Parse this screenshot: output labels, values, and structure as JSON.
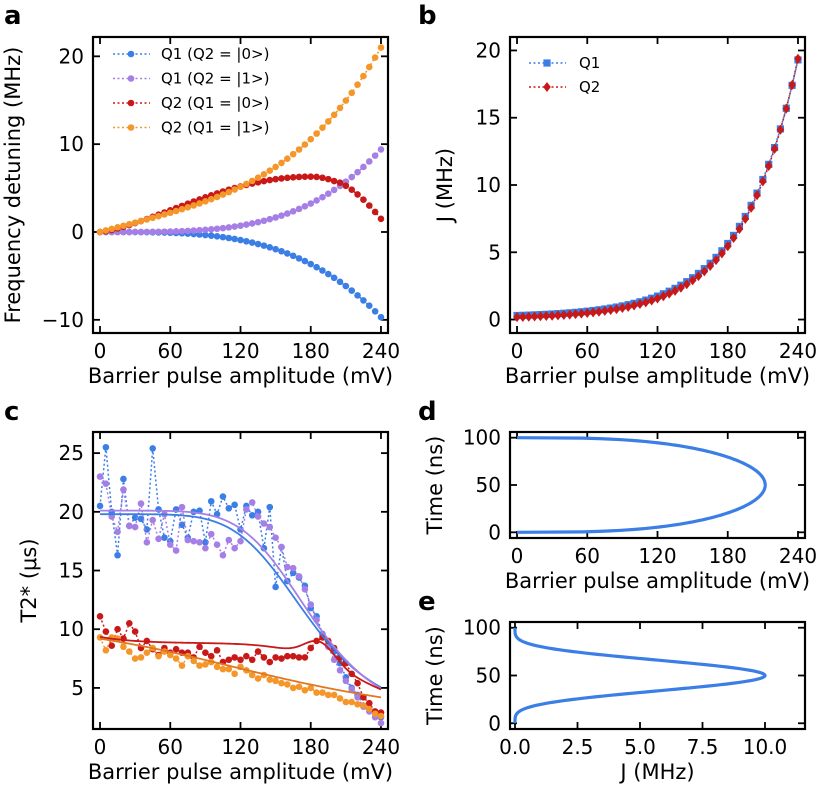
{
  "figure": {
    "panels": [
      "a",
      "b",
      "c",
      "d",
      "e"
    ]
  },
  "chart_data": [
    {
      "id": "a",
      "type": "line",
      "title": "",
      "xlabel": "Barrier pulse amplitude (mV)",
      "ylabel": "Frequency detuning (MHz)",
      "xlim": [
        -6,
        246
      ],
      "ylim": [
        -11.5,
        22.2
      ],
      "xticks": [
        0,
        60,
        120,
        180,
        240
      ],
      "yticks": [
        -10,
        0,
        10,
        20
      ],
      "legend_position": "top-left",
      "x_start": 0,
      "x_step": 5,
      "n": 49,
      "series": [
        {
          "name": "Q1 (Q2 = |0>)",
          "color": "#3a7ee6",
          "fn": "q1_0"
        },
        {
          "name": "Q1 (Q2 = |1>)",
          "color": "#a57fe6",
          "fn": "q1_1"
        },
        {
          "name": "Q2 (Q1 = |0>)",
          "color": "#c81818",
          "fn": "q2_0"
        },
        {
          "name": "Q2 (Q1 = |1>)",
          "color": "#f5962a",
          "fn": "q2_1"
        }
      ]
    },
    {
      "id": "b",
      "type": "line",
      "title": "",
      "xlabel": "Barrier pulse amplitude (mV)",
      "ylabel": "J (MHz)",
      "xlim": [
        -6,
        246
      ],
      "ylim": [
        -1,
        21
      ],
      "xticks": [
        0,
        60,
        120,
        180,
        240
      ],
      "yticks": [
        0,
        5,
        10,
        15,
        20
      ],
      "legend_position": "top-left",
      "x_start": 0,
      "x_step": 5,
      "n": 49,
      "series": [
        {
          "name": "Q1",
          "color": "#3a7ee6",
          "marker": "square",
          "fn": "j_q1"
        },
        {
          "name": "Q2",
          "color": "#c81818",
          "marker": "diamond",
          "fn": "j_q2"
        }
      ]
    },
    {
      "id": "c",
      "type": "scatter",
      "title": "",
      "xlabel": "Barrier pulse amplitude (mV)",
      "ylabel": "T2* (μs)",
      "xlim": [
        -6,
        246
      ],
      "ylim": [
        1.5,
        26.8
      ],
      "xticks": [
        0,
        60,
        120,
        180,
        240
      ],
      "yticks": [
        5,
        10,
        15,
        20,
        25
      ],
      "legend_position": "none",
      "x_start": 0,
      "x_step": 5,
      "n": 49,
      "series": [
        {
          "name": "Q1 (Q2 = |0>)",
          "color": "#3a7ee6",
          "values": [
            20.5,
            25.5,
            20.0,
            16.3,
            22.8,
            18.8,
            19.5,
            19.4,
            18.5,
            25.4,
            20.2,
            17.8,
            17.5,
            20.2,
            18.9,
            17.8,
            20.0,
            20.1,
            17.4,
            20.9,
            19.8,
            21.3,
            20.3,
            20.6,
            18.5,
            20.5,
            19.7,
            20.0,
            16.9,
            20.4,
            13.6,
            17.0,
            14.1,
            14.8,
            14.4,
            13.7,
            11.8,
            11.1,
            9.6,
            8.7,
            8.1,
            7.1,
            5.9,
            5.0,
            4.4,
            3.5,
            3.2,
            2.8,
            2.5
          ],
          "fit": "fit_q1_0",
          "fit_color": "#3a7ee6"
        },
        {
          "name": "Q1 (Q2 = |1>)",
          "color": "#a57fe6",
          "values": [
            23.0,
            22.4,
            19.6,
            18.3,
            21.9,
            18.8,
            18.7,
            20.7,
            17.4,
            19.3,
            17.7,
            19.8,
            17.2,
            16.7,
            20.4,
            17.6,
            17.5,
            17.4,
            16.9,
            18.1,
            17.2,
            16.3,
            17.6,
            16.9,
            17.5,
            20.2,
            20.8,
            19.6,
            19.0,
            18.7,
            17.8,
            17.0,
            15.3,
            15.2,
            14.5,
            13.4,
            12.1,
            10.8,
            9.5,
            8.5,
            7.4,
            6.5,
            5.6,
            4.9,
            4.2,
            3.4,
            3.0,
            2.5,
            2.0
          ],
          "fit": "fit_q1_1",
          "fit_color": "#a57fe6"
        },
        {
          "name": "Q2 (Q1 = |0>)",
          "color": "#c81818",
          "values": [
            11.1,
            9.8,
            8.6,
            10.0,
            9.2,
            10.5,
            9.8,
            8.4,
            9.0,
            8.3,
            7.8,
            8.4,
            8.0,
            8.3,
            8.0,
            8.0,
            7.6,
            8.5,
            8.0,
            7.7,
            8.2,
            7.2,
            7.4,
            7.6,
            7.4,
            7.7,
            7.4,
            8.1,
            7.6,
            7.2,
            7.6,
            7.5,
            7.7,
            7.7,
            7.6,
            7.6,
            8.4,
            9.0,
            9.3,
            9.0,
            8.4,
            7.6,
            7.1,
            6.2,
            5.4,
            4.2,
            3.7,
            3.0,
            2.9
          ],
          "fit": "fit_q2_0",
          "fit_color": "#c81818"
        },
        {
          "name": "Q2 (Q1 = |1>)",
          "color": "#f5962a",
          "values": [
            9.3,
            8.2,
            9.3,
            9.2,
            8.5,
            8.1,
            7.5,
            7.6,
            8.0,
            8.4,
            7.7,
            8.1,
            7.8,
            7.5,
            6.9,
            7.7,
            7.3,
            6.9,
            7.0,
            7.2,
            6.8,
            6.6,
            6.6,
            6.2,
            6.8,
            6.5,
            6.1,
            5.8,
            6.1,
            5.7,
            5.6,
            5.4,
            5.3,
            5.0,
            5.1,
            4.8,
            5.0,
            4.6,
            4.6,
            4.4,
            4.4,
            4.1,
            3.8,
            3.8,
            3.6,
            3.5,
            3.2,
            2.8,
            2.6
          ],
          "fit": "fit_q2_1",
          "fit_color": "#e07820"
        }
      ]
    },
    {
      "id": "d",
      "type": "line",
      "title": "",
      "xlabel": "Barrier pulse amplitude (mV)",
      "ylabel": "Time (ns)",
      "xlim": [
        -6,
        246
      ],
      "ylim": [
        -6,
        106
      ],
      "xticks": [
        0,
        60,
        120,
        180,
        240
      ],
      "yticks": [
        0,
        50,
        100
      ],
      "legend_position": "none",
      "series": [
        {
          "name": "pulse",
          "color": "#3a7ee6",
          "fn": "pulse_d",
          "amplitude_max": 212
        }
      ]
    },
    {
      "id": "e",
      "type": "line",
      "title": "",
      "xlabel": "J (MHz)",
      "ylabel": "Time (ns)",
      "xlim": [
        -0.2,
        11.6
      ],
      "ylim": [
        -6,
        106
      ],
      "xticks": [
        0.0,
        2.5,
        5.0,
        7.5,
        10.0
      ],
      "xtick_labels": [
        "0.0",
        "2.5",
        "5.0",
        "7.5",
        "10.0"
      ],
      "yticks": [
        0,
        50,
        100
      ],
      "legend_position": "none",
      "series": [
        {
          "name": "pulse",
          "color": "#3a7ee6",
          "fn": "pulse_e",
          "j_max": 10.0
        }
      ]
    }
  ]
}
